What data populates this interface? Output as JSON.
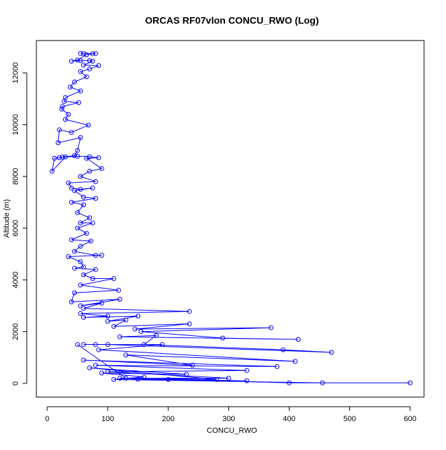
{
  "chart_data": {
    "type": "line",
    "title": "ORCAS RF07vlon CONCU_RWO (Log)",
    "x_label": "CONCU_RWO",
    "y_label": "Altitude (m)",
    "color": "#0000ff",
    "markers": "open-circle",
    "x": [
      55,
      60,
      75,
      80,
      65,
      50,
      40,
      55,
      70,
      75,
      60,
      85,
      70,
      55,
      65,
      45,
      38,
      55,
      30,
      28,
      52,
      25,
      24,
      35,
      30,
      68,
      40,
      20,
      18,
      55,
      50,
      45,
      25,
      20,
      12,
      8,
      30,
      50,
      70,
      85,
      65,
      90,
      70,
      55,
      80,
      35,
      40,
      55,
      75,
      45,
      60,
      80,
      40,
      60,
      50,
      70,
      55,
      75,
      50,
      65,
      40,
      72,
      55,
      45,
      80,
      90,
      35,
      55,
      60,
      45,
      80,
      60,
      75,
      110,
      55,
      118,
      45,
      40,
      120,
      55,
      90,
      60,
      235,
      55,
      100,
      60,
      150,
      100,
      130,
      110,
      235,
      145,
      370,
      155,
      290,
      415,
      120,
      180,
      160,
      390,
      470,
      100,
      60,
      80,
      190,
      85,
      410,
      130,
      240,
      60,
      380,
      80,
      330,
      100,
      300,
      120,
      150,
      330,
      200,
      400,
      600,
      455,
      110,
      160,
      90,
      230,
      70,
      280,
      130,
      50
    ],
    "values": [
      12750,
      12750,
      12740,
      12750,
      12700,
      12500,
      12450,
      12480,
      12470,
      12450,
      12300,
      12280,
      12150,
      12050,
      11850,
      11650,
      11450,
      11300,
      11050,
      10900,
      10850,
      10700,
      10600,
      10400,
      10200,
      9980,
      9700,
      9800,
      9300,
      9500,
      9000,
      8800,
      8750,
      8720,
      8700,
      8200,
      8750,
      8780,
      8760,
      8720,
      8700,
      8300,
      8200,
      8000,
      7800,
      7750,
      7550,
      7500,
      7550,
      7450,
      7200,
      7150,
      7000,
      6900,
      6600,
      6400,
      6200,
      6200,
      6000,
      5800,
      5550,
      5500,
      5300,
      5100,
      4950,
      4950,
      4900,
      4700,
      4500,
      4450,
      4400,
      4200,
      4050,
      4050,
      3800,
      3600,
      3500,
      3150,
      3250,
      3000,
      3100,
      2900,
      2780,
      2700,
      2600,
      2550,
      2600,
      2400,
      2450,
      2200,
      2300,
      2100,
      2150,
      2000,
      1750,
      1700,
      1800,
      1850,
      1500,
      1300,
      1200,
      1500,
      1500,
      1500,
      1500,
      1300,
      850,
      1100,
      700,
      900,
      650,
      700,
      500,
      450,
      200,
      200,
      160,
      100,
      150,
      20,
      20,
      20,
      150,
      250,
      400,
      350,
      600,
      150,
      200,
      1500
    ],
    "xlim": [
      -18,
      623
    ],
    "ylim": [
      -530,
      13250
    ],
    "xticks": [
      0,
      100,
      200,
      300,
      400,
      500,
      600
    ],
    "yticks": [
      0,
      2000,
      4000,
      6000,
      8000,
      10000,
      12000
    ]
  }
}
